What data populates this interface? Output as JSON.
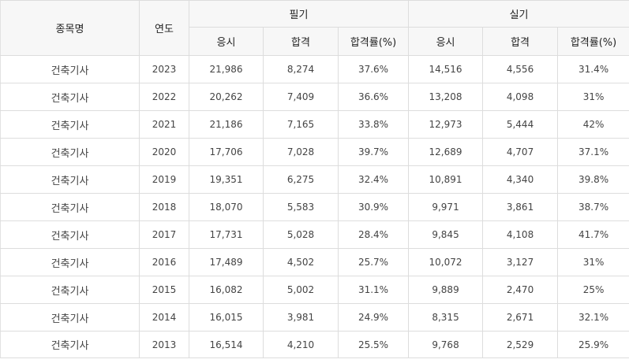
{
  "headers": {
    "name": "종목명",
    "year": "연도",
    "written": "필기",
    "practical": "실기",
    "applicants": "응시",
    "passed": "합격",
    "pass_rate": "합격률(%)"
  },
  "rows": [
    {
      "name": "건축기사",
      "year": "2023",
      "w_app": "21,986",
      "w_pass": "8,274",
      "w_rate": "37.6%",
      "p_app": "14,516",
      "p_pass": "4,556",
      "p_rate": "31.4%"
    },
    {
      "name": "건축기사",
      "year": "2022",
      "w_app": "20,262",
      "w_pass": "7,409",
      "w_rate": "36.6%",
      "p_app": "13,208",
      "p_pass": "4,098",
      "p_rate": "31%"
    },
    {
      "name": "건축기사",
      "year": "2021",
      "w_app": "21,186",
      "w_pass": "7,165",
      "w_rate": "33.8%",
      "p_app": "12,973",
      "p_pass": "5,444",
      "p_rate": "42%"
    },
    {
      "name": "건축기사",
      "year": "2020",
      "w_app": "17,706",
      "w_pass": "7,028",
      "w_rate": "39.7%",
      "p_app": "12,689",
      "p_pass": "4,707",
      "p_rate": "37.1%"
    },
    {
      "name": "건축기사",
      "year": "2019",
      "w_app": "19,351",
      "w_pass": "6,275",
      "w_rate": "32.4%",
      "p_app": "10,891",
      "p_pass": "4,340",
      "p_rate": "39.8%"
    },
    {
      "name": "건축기사",
      "year": "2018",
      "w_app": "18,070",
      "w_pass": "5,583",
      "w_rate": "30.9%",
      "p_app": "9,971",
      "p_pass": "3,861",
      "p_rate": "38.7%"
    },
    {
      "name": "건축기사",
      "year": "2017",
      "w_app": "17,731",
      "w_pass": "5,028",
      "w_rate": "28.4%",
      "p_app": "9,845",
      "p_pass": "4,108",
      "p_rate": "41.7%"
    },
    {
      "name": "건축기사",
      "year": "2016",
      "w_app": "17,489",
      "w_pass": "4,502",
      "w_rate": "25.7%",
      "p_app": "10,072",
      "p_pass": "3,127",
      "p_rate": "31%"
    },
    {
      "name": "건축기사",
      "year": "2015",
      "w_app": "16,082",
      "w_pass": "5,002",
      "w_rate": "31.1%",
      "p_app": "9,889",
      "p_pass": "2,470",
      "p_rate": "25%"
    },
    {
      "name": "건축기사",
      "year": "2014",
      "w_app": "16,015",
      "w_pass": "3,981",
      "w_rate": "24.9%",
      "p_app": "8,315",
      "p_pass": "2,671",
      "p_rate": "32.1%"
    },
    {
      "name": "건축기사",
      "year": "2013",
      "w_app": "16,514",
      "w_pass": "4,210",
      "w_rate": "25.5%",
      "p_app": "9,768",
      "p_pass": "2,529",
      "p_rate": "25.9%"
    }
  ]
}
